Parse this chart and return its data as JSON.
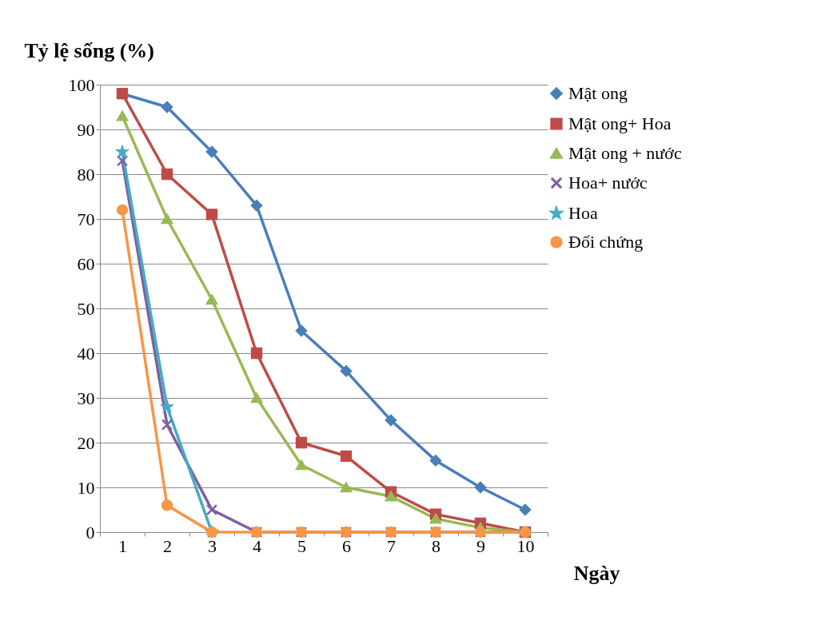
{
  "chart_data": {
    "type": "line",
    "xlabel": "Ngày",
    "ylabel": "Tỷ lệ sống (%)",
    "categories": [
      "1",
      "2",
      "3",
      "4",
      "5",
      "6",
      "7",
      "8",
      "9",
      "10"
    ],
    "ylim": [
      0,
      100
    ],
    "yticks": [
      0,
      10,
      20,
      30,
      40,
      50,
      60,
      70,
      80,
      90,
      100
    ],
    "grid": "y",
    "legend": "right",
    "line_style": "solid",
    "series": [
      {
        "name": "Mật ong",
        "color": "#4a7ebb",
        "marker": "diamond",
        "values": [
          98,
          95,
          85,
          73,
          45,
          36,
          25,
          16,
          10,
          5
        ]
      },
      {
        "name": "Mật ong+ Hoa",
        "color": "#be4b48",
        "marker": "square",
        "values": [
          98,
          80,
          71,
          40,
          20,
          17,
          9,
          4,
          2,
          0
        ]
      },
      {
        "name": "Mật ong + nước",
        "color": "#98b954",
        "marker": "triangle",
        "values": [
          93,
          70,
          52,
          30,
          15,
          10,
          8,
          3,
          1,
          0
        ]
      },
      {
        "name": "Hoa+ nước",
        "color": "#7d60a0",
        "marker": "cross",
        "values": [
          83,
          24,
          5,
          0,
          0,
          0,
          0,
          0,
          0,
          0
        ]
      },
      {
        "name": "Hoa",
        "color": "#46aac5",
        "marker": "star",
        "values": [
          85,
          28,
          0,
          null,
          null,
          null,
          null,
          null,
          null,
          null
        ]
      },
      {
        "name": "Đối chứng",
        "color": "#f79646",
        "marker": "circle",
        "values": [
          72,
          6,
          0,
          0,
          0,
          0,
          0,
          0,
          0,
          0
        ]
      }
    ]
  }
}
